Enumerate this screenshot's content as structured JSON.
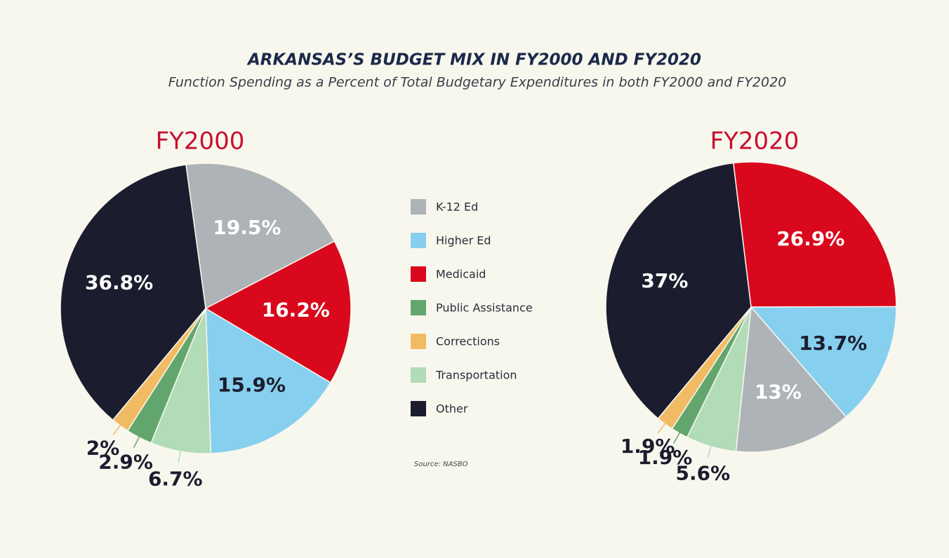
{
  "title": "ARKANSAS’S BUDGET MIX IN FY2000 AND FY2020",
  "subtitle": "Function Spending as a Percent of Total Budgetary Expenditures in both FY2000 and FY2020",
  "source": "Source: NASBO",
  "legend": {
    "items": [
      {
        "name": "K-12 Ed",
        "color": "#aeb3b7",
        "label_color": "#ffffff"
      },
      {
        "name": "Higher Ed",
        "color": "#87cfee",
        "label_color": "#1b1d2e"
      },
      {
        "name": "Medicaid",
        "color": "#d9081c",
        "label_color": "#ffffff"
      },
      {
        "name": "Public Assistance",
        "color": "#63a66d",
        "label_color": "#1b1d2e"
      },
      {
        "name": "Corrections",
        "color": "#f1bb64",
        "label_color": "#1b1d2e"
      },
      {
        "name": "Transportation",
        "color": "#b2dbb8",
        "label_color": "#1b1d2e"
      },
      {
        "name": "Other",
        "color": "#1b1d2e",
        "label_color": "#ffffff"
      }
    ]
  },
  "chart_data": [
    {
      "type": "pie",
      "title": "FY2000",
      "categories": [
        "K-12 Ed",
        "Medicaid",
        "Higher Ed",
        "Transportation",
        "Public Assistance",
        "Corrections",
        "Other"
      ],
      "values": [
        19.5,
        16.2,
        15.9,
        6.7,
        2.9,
        2,
        36.8
      ],
      "value_labels": [
        "19.5%",
        "16.2%",
        "15.9%",
        "6.7%",
        "2.9%",
        "2%",
        "36.8%"
      ]
    },
    {
      "type": "pie",
      "title": "FY2020",
      "categories": [
        "Medicaid",
        "Higher Ed",
        "K-12 Ed",
        "Transportation",
        "Public Assistance",
        "Corrections",
        "Other"
      ],
      "values": [
        26.9,
        13.7,
        13,
        5.6,
        1.9,
        1.9,
        37
      ],
      "value_labels": [
        "26.9%",
        "13.7%",
        "13%",
        "5.6%",
        "1.9%",
        "1.9%",
        "37%"
      ]
    }
  ]
}
